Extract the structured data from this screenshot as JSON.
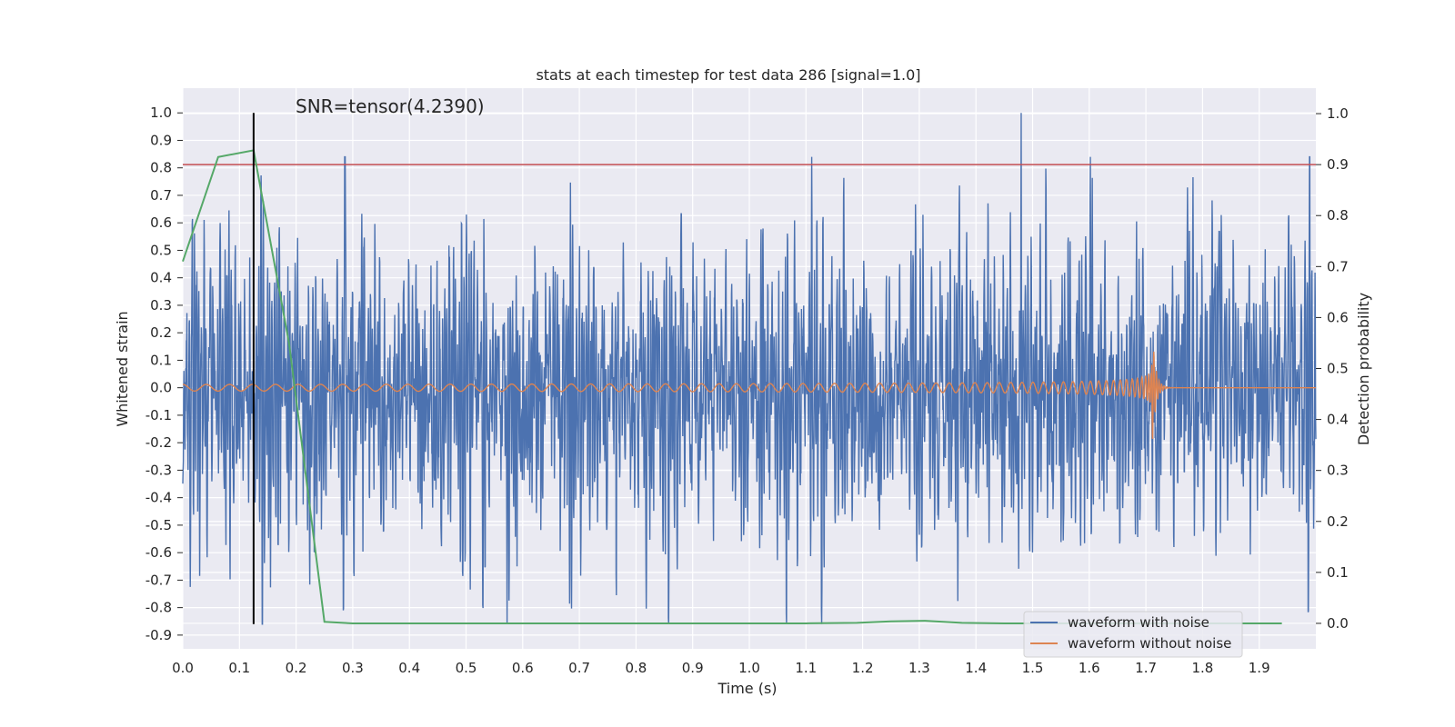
{
  "chart_data": {
    "type": "line",
    "title": "stats at each timestep for test data 286 [signal=1.0]",
    "xlabel": "Time (s)",
    "ylabel": "Whitened strain",
    "ylabel_right": "Detection probability",
    "xlim": [
      0.0,
      2.0
    ],
    "ylim": [
      -0.95,
      1.09
    ],
    "ylim_right": [
      -0.05,
      1.05
    ],
    "x_ticks": [
      "0.0",
      "0.1",
      "0.2",
      "0.3",
      "0.4",
      "0.5",
      "0.6",
      "0.7",
      "0.8",
      "0.9",
      "1.0",
      "1.1",
      "1.2",
      "1.3",
      "1.4",
      "1.5",
      "1.6",
      "1.7",
      "1.8",
      "1.9"
    ],
    "y_ticks": [
      "1.0",
      "0.9",
      "0.8",
      "0.7",
      "0.6",
      "0.5",
      "0.4",
      "0.3",
      "0.2",
      "0.1",
      "0.0",
      "-0.1",
      "-0.2",
      "-0.3",
      "-0.4",
      "-0.5",
      "-0.6",
      "-0.7",
      "-0.8",
      "-0.9"
    ],
    "y_ticks_right": [
      "1.0",
      "0.9",
      "0.8",
      "0.7",
      "0.6",
      "0.5",
      "0.4",
      "0.3",
      "0.2",
      "0.1",
      "0.0"
    ],
    "grid": true,
    "legend_position": "lower-right",
    "annotation": "SNR=tensor(4.2390)",
    "threshold_right": 0.9,
    "marker_x": 0.125,
    "marker_y_range": [
      -0.86,
      1.0
    ],
    "colors": {
      "noisy": "#4c72b0",
      "clean": "#dd8452",
      "probability": "#55a868",
      "threshold": "#c44e52",
      "marker": "#000000",
      "background": "#eaeaf2"
    },
    "series": [
      {
        "name": "waveform with noise",
        "kind": "noisy_strain",
        "sample_count": 4096,
        "approx_range": [
          -0.86,
          1.0
        ],
        "peak": {
          "x": 1.48,
          "y": 1.0
        }
      },
      {
        "name": "waveform without noise",
        "kind": "chirp",
        "merger_x": 1.71,
        "peak_amplitude": 0.26,
        "start_amplitude": 0.012,
        "start_frequency": 24,
        "end_frequency": 220
      },
      {
        "kind": "detection_probability",
        "axis": "right",
        "x": [
          0.0,
          0.0625,
          0.125,
          0.1875,
          0.25,
          0.3,
          0.4,
          0.5,
          0.6,
          0.7,
          0.8,
          0.9,
          1.0,
          1.1,
          1.19,
          1.25,
          1.31,
          1.375,
          1.45,
          1.55,
          1.65,
          1.75,
          1.85,
          1.94
        ],
        "y": [
          0.71,
          0.915,
          0.928,
          0.55,
          0.003,
          0.0,
          0.0,
          0.0,
          0.0,
          0.0,
          0.0,
          0.0,
          0.0,
          0.0,
          0.001,
          0.004,
          0.005,
          0.001,
          0.0,
          0.0,
          0.0,
          0.0,
          0.0,
          0.0
        ]
      }
    ]
  }
}
